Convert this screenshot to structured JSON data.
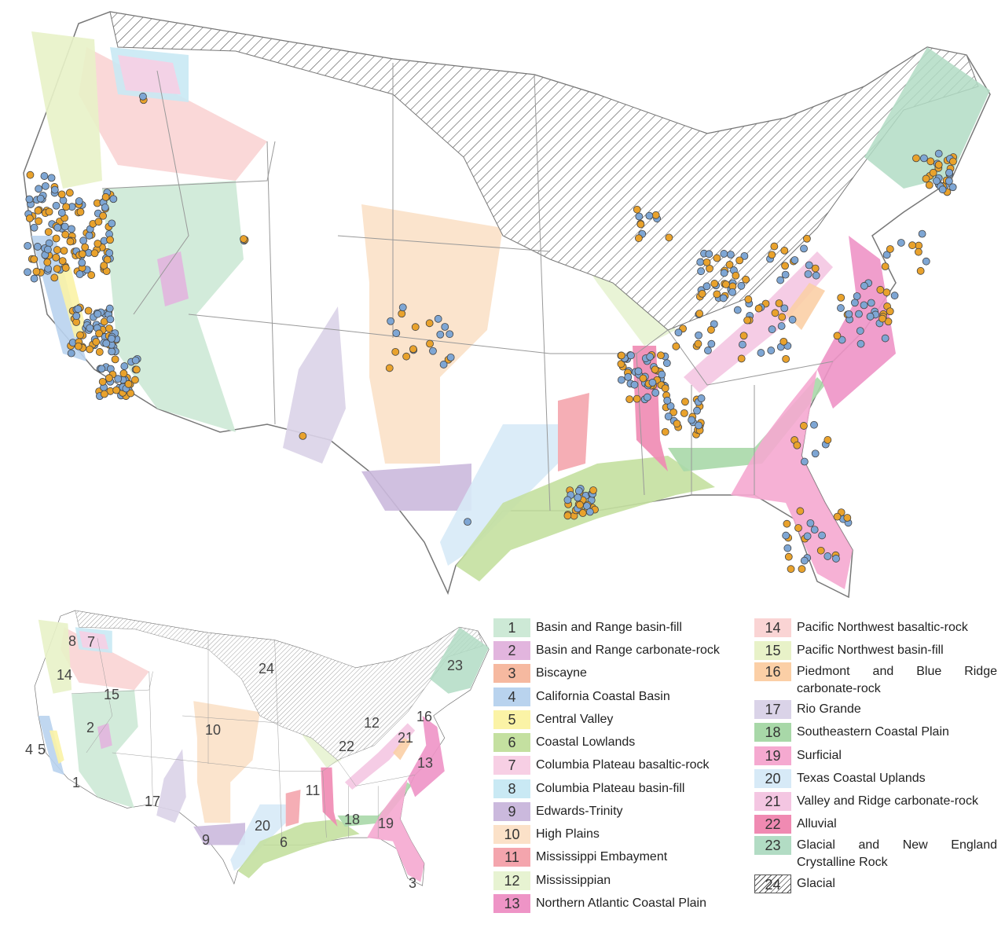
{
  "legend": {
    "items": [
      {
        "number": "1",
        "label": "Basin and Range basin-fill",
        "color": "#cde9d6"
      },
      {
        "number": "2",
        "label": "Basin and Range carbonate-rock",
        "color": "#e2b5de"
      },
      {
        "number": "3",
        "label": "Biscayne",
        "color": "#f6b9a0"
      },
      {
        "number": "4",
        "label": "California Coastal Basin",
        "color": "#b9d3ee"
      },
      {
        "number": "5",
        "label": "Central Valley",
        "color": "#fbf3a6"
      },
      {
        "number": "6",
        "label": "Coastal Lowlands",
        "color": "#c4e0a0"
      },
      {
        "number": "7",
        "label": "Columbia Plateau basaltic-rock",
        "color": "#f7cfe4"
      },
      {
        "number": "8",
        "label": "Columbia Plateau basin-fill",
        "color": "#c9e9f4"
      },
      {
        "number": "9",
        "label": "Edwards-Trinity",
        "color": "#cbb9dd"
      },
      {
        "number": "10",
        "label": "High Plains",
        "color": "#fbe1c8"
      },
      {
        "number": "11",
        "label": "Mississippi Embayment",
        "color": "#f4a5ad"
      },
      {
        "number": "12",
        "label": "Mississippian",
        "color": "#e7f3d2"
      },
      {
        "number": "13",
        "label": "Northern Atlantic Coastal Plain",
        "color": "#ee94c6"
      },
      {
        "number": "14",
        "label": "Pacific Northwest basaltic-rock",
        "color": "#fad4d4"
      },
      {
        "number": "15",
        "label": "Pacific Northwest basin-fill",
        "color": "#e8f2c8"
      },
      {
        "number": "16",
        "label": "Piedmont and Blue Ridge carbonate-rock",
        "color": "#fbcfa6"
      },
      {
        "number": "17",
        "label": "Rio Grande",
        "color": "#dad3e8"
      },
      {
        "number": "18",
        "label": "Southeastern Coastal Plain",
        "color": "#a8d8a8"
      },
      {
        "number": "19",
        "label": "Surficial",
        "color": "#f5a9d0"
      },
      {
        "number": "20",
        "label": "Texas Coastal Uplands",
        "color": "#d7eaf7"
      },
      {
        "number": "21",
        "label": "Valley and Ridge carbonate-rock",
        "color": "#f4c6e2"
      },
      {
        "number": "22",
        "label": "Alluvial",
        "color": "#f08ab2"
      },
      {
        "number": "23",
        "label": "Glacial and New England Crystalline Rock",
        "color": "#b2dcc4"
      },
      {
        "number": "24",
        "label": "Glacial",
        "color": "none",
        "hatched": true
      }
    ]
  },
  "inset_labels": [
    "8",
    "7",
    "14",
    "15",
    "2",
    "10",
    "24",
    "23",
    "16",
    "12",
    "21",
    "22",
    "4",
    "5",
    "1",
    "17",
    "13",
    "11",
    "20",
    "18",
    "19",
    "9",
    "6",
    "3"
  ]
}
